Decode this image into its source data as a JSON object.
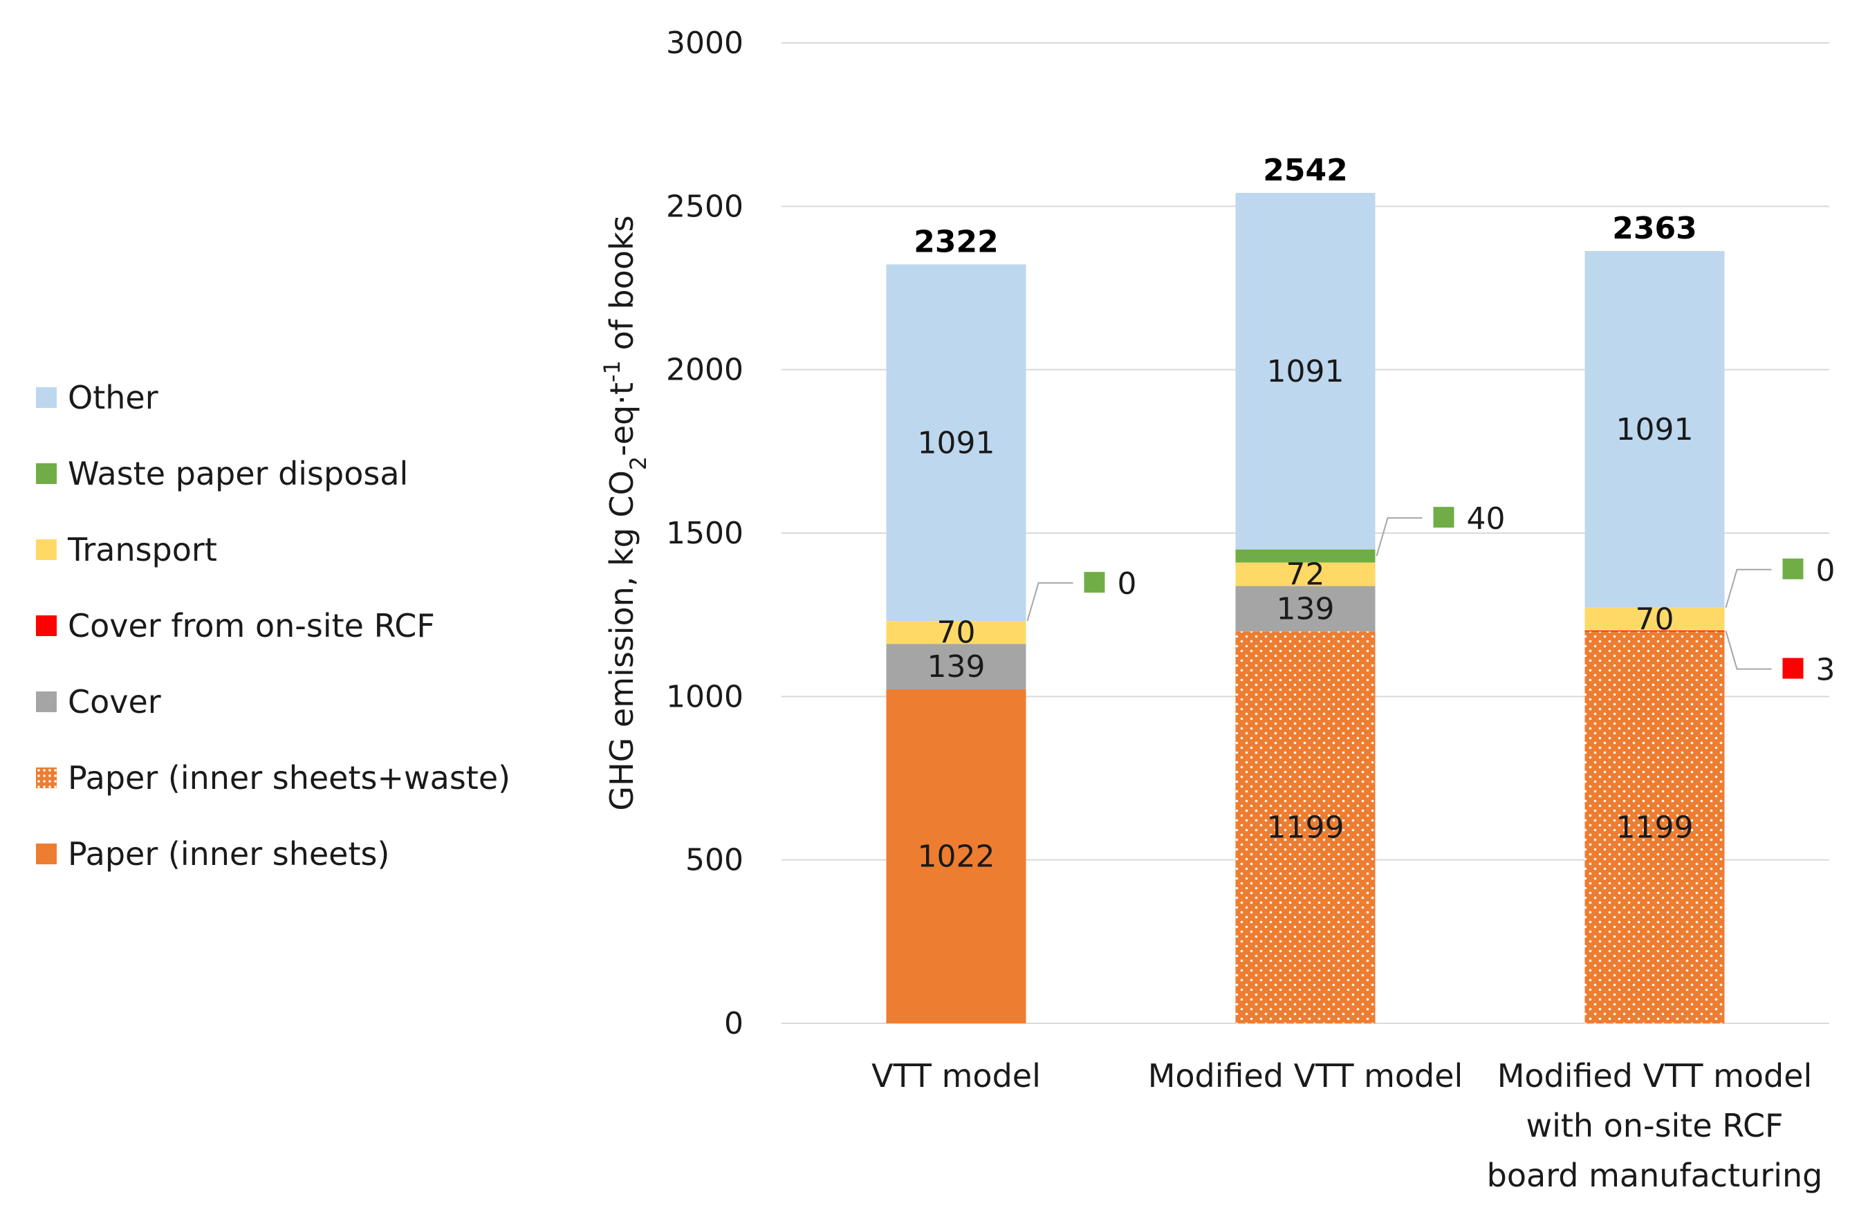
{
  "chart_data": {
    "type": "bar",
    "stacked": true,
    "ylabel": "GHG emission, kg CO2-eq·t-1 of books",
    "ylabel_parts": {
      "a": "GHG emission, kg CO",
      "sub": "2",
      "b": "-eq·t",
      "sup": "-1",
      "c": " of books"
    },
    "ylim": [
      0,
      3000
    ],
    "yticks": [
      "0",
      "500",
      "1000",
      "1500",
      "2000",
      "2500",
      "3000"
    ],
    "grid": true,
    "legend_position": "left",
    "categories": [
      {
        "lines": [
          "VTT model"
        ],
        "total": "2322"
      },
      {
        "lines": [
          "Modified VTT model"
        ],
        "total": "2542"
      },
      {
        "lines": [
          "Modified VTT model",
          "with on-site RCF",
          "board manufacturing"
        ],
        "total": "2363"
      }
    ],
    "series": [
      {
        "name": "Paper (inner sheets)",
        "color": "#ED7D31",
        "pattern": "none",
        "values": [
          1022,
          0,
          0
        ],
        "labels": [
          "1022",
          "",
          ""
        ]
      },
      {
        "name": "Paper (inner sheets+waste)",
        "color": "#ED7D31",
        "pattern": "dots",
        "values": [
          0,
          1199,
          1199
        ],
        "labels": [
          "",
          "1199",
          "1199"
        ]
      },
      {
        "name": "Cover",
        "color": "#A5A5A5",
        "pattern": "none",
        "values": [
          139,
          139,
          0
        ],
        "labels": [
          "139",
          "139",
          ""
        ]
      },
      {
        "name": "Cover from on-site  RCF",
        "color": "#FF0000",
        "pattern": "none",
        "values": [
          0,
          0,
          3
        ],
        "labels": [
          "",
          "",
          ""
        ]
      },
      {
        "name": "Transport",
        "color": "#FFD966",
        "pattern": "none",
        "values": [
          70,
          72,
          70
        ],
        "labels": [
          "70",
          "72",
          "70"
        ]
      },
      {
        "name": "Waste paper disposal",
        "color": "#70AD47",
        "pattern": "none",
        "values": [
          0,
          40,
          0
        ],
        "labels": [
          "",
          "",
          ""
        ]
      },
      {
        "name": "Other",
        "color": "#BDD7EE",
        "pattern": "none",
        "values": [
          1091,
          1091,
          1091
        ],
        "labels": [
          "1091",
          "1091",
          "1091"
        ]
      }
    ],
    "callouts": [
      {
        "category": 0,
        "series": "Waste paper disposal",
        "color": "#70AD47",
        "text": "0"
      },
      {
        "category": 1,
        "series": "Waste paper disposal",
        "color": "#70AD47",
        "text": "40"
      },
      {
        "category": 2,
        "series": "Waste paper disposal",
        "color": "#70AD47",
        "text": "0"
      },
      {
        "category": 2,
        "series": "Cover from on-site  RCF",
        "color": "#FF0000",
        "text": "3"
      }
    ],
    "legend": [
      {
        "name": "Other",
        "color": "#BDD7EE",
        "pattern": "none"
      },
      {
        "name": "Waste paper disposal",
        "color": "#70AD47",
        "pattern": "none"
      },
      {
        "name": "Transport",
        "color": "#FFD966",
        "pattern": "none"
      },
      {
        "name": "Cover from on-site  RCF",
        "color": "#FF0000",
        "pattern": "none"
      },
      {
        "name": "Cover",
        "color": "#A5A5A5",
        "pattern": "none"
      },
      {
        "name": "Paper (inner sheets+waste)",
        "color": "#ED7D31",
        "pattern": "dots"
      },
      {
        "name": "Paper (inner sheets)",
        "color": "#ED7D31",
        "pattern": "none"
      }
    ]
  }
}
